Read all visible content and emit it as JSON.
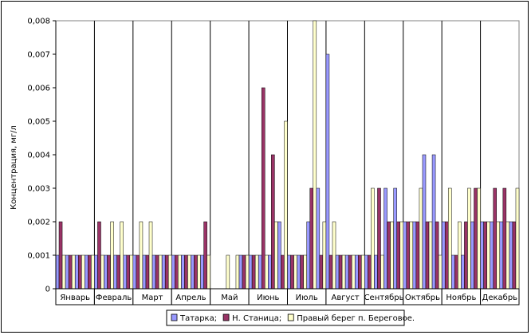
{
  "chart_data": {
    "type": "bar",
    "ylabel": "Концентрация, мг/л",
    "xlabel": "",
    "ylim": [
      0,
      0.008
    ],
    "yticks": [
      "0",
      "0,001",
      "0,002",
      "0,003",
      "0,004",
      "0,005",
      "0,006",
      "0,007",
      "0,008"
    ],
    "grid": "major vertical gridlines between month groups",
    "legend_position": "bottom",
    "categories": [
      "Январь",
      "Февраль",
      "Март",
      "Апрель",
      "Май",
      "Июнь",
      "Июль",
      "Август",
      "Сентябрь",
      "Октябрь",
      "Ноябрь",
      "Декабрь"
    ],
    "bars_per_month": 12,
    "series": [
      {
        "name": "Татарка;",
        "color": "#9999FF",
        "values": [
          [
            0.001,
            0.001,
            0.001,
            0.001
          ],
          [
            0.001,
            0.001,
            0.001,
            0.001
          ],
          [
            0.001,
            0.001,
            0.001,
            0.001
          ],
          [
            0.001,
            0.001,
            0.001,
            0.001
          ],
          [
            0,
            0,
            0,
            0.001
          ],
          [
            0.001,
            0.001,
            0.001,
            0.002
          ],
          [
            0.001,
            0.001,
            0.002,
            0.003
          ],
          [
            0.007,
            0.001,
            0.001,
            0.001
          ],
          [
            0.001,
            0.001,
            0.003,
            0.003
          ],
          [
            0.002,
            0.002,
            0.004,
            0.004
          ],
          [
            0.002,
            0.001,
            0.001,
            0.002
          ],
          [
            0.002,
            0.002,
            0.002,
            0.002
          ]
        ]
      },
      {
        "name": "Н. Станица;",
        "color": "#993366",
        "values": [
          [
            0.002,
            0.001,
            0.001,
            0.001
          ],
          [
            0.002,
            0.001,
            0.001,
            0.001
          ],
          [
            0.001,
            0.001,
            0.001,
            0.001
          ],
          [
            0.001,
            0.001,
            0.001,
            0.002
          ],
          [
            0,
            0,
            0,
            0.001
          ],
          [
            0.001,
            0.006,
            0.004,
            0.001
          ],
          [
            0.001,
            0.001,
            0.003,
            0.001
          ],
          [
            0.001,
            0.001,
            0.001,
            0.001
          ],
          [
            0.001,
            0.003,
            0.002,
            0.002
          ],
          [
            0.002,
            0.002,
            0.002,
            0.002
          ],
          [
            0.002,
            0.001,
            0.002,
            0.003
          ],
          [
            0.002,
            0.003,
            0.003,
            0.002
          ]
        ]
      },
      {
        "name": "Правый берег п. Береговое.",
        "color": "#FFFFCC",
        "values": [
          [
            0.001,
            0.001,
            0.001,
            0.001
          ],
          [
            0.001,
            0.002,
            0.002,
            0.001
          ],
          [
            0.002,
            0.002,
            0.001,
            0.001
          ],
          [
            0.001,
            0.001,
            0.001,
            0.001
          ],
          [
            0,
            0.001,
            0.001,
            0.001
          ],
          [
            0.001,
            0.001,
            0.002,
            0.005
          ],
          [
            0.001,
            0.001,
            0.008,
            0.002
          ],
          [
            0.002,
            0.001,
            0.001,
            0.001
          ],
          [
            0.003,
            0.001,
            0.002,
            0.002
          ],
          [
            0.002,
            0.003,
            0.002,
            0.001
          ],
          [
            0.003,
            0.002,
            0.003,
            0.003
          ],
          [
            0.002,
            0.002,
            0.002,
            0.003
          ]
        ]
      }
    ]
  }
}
